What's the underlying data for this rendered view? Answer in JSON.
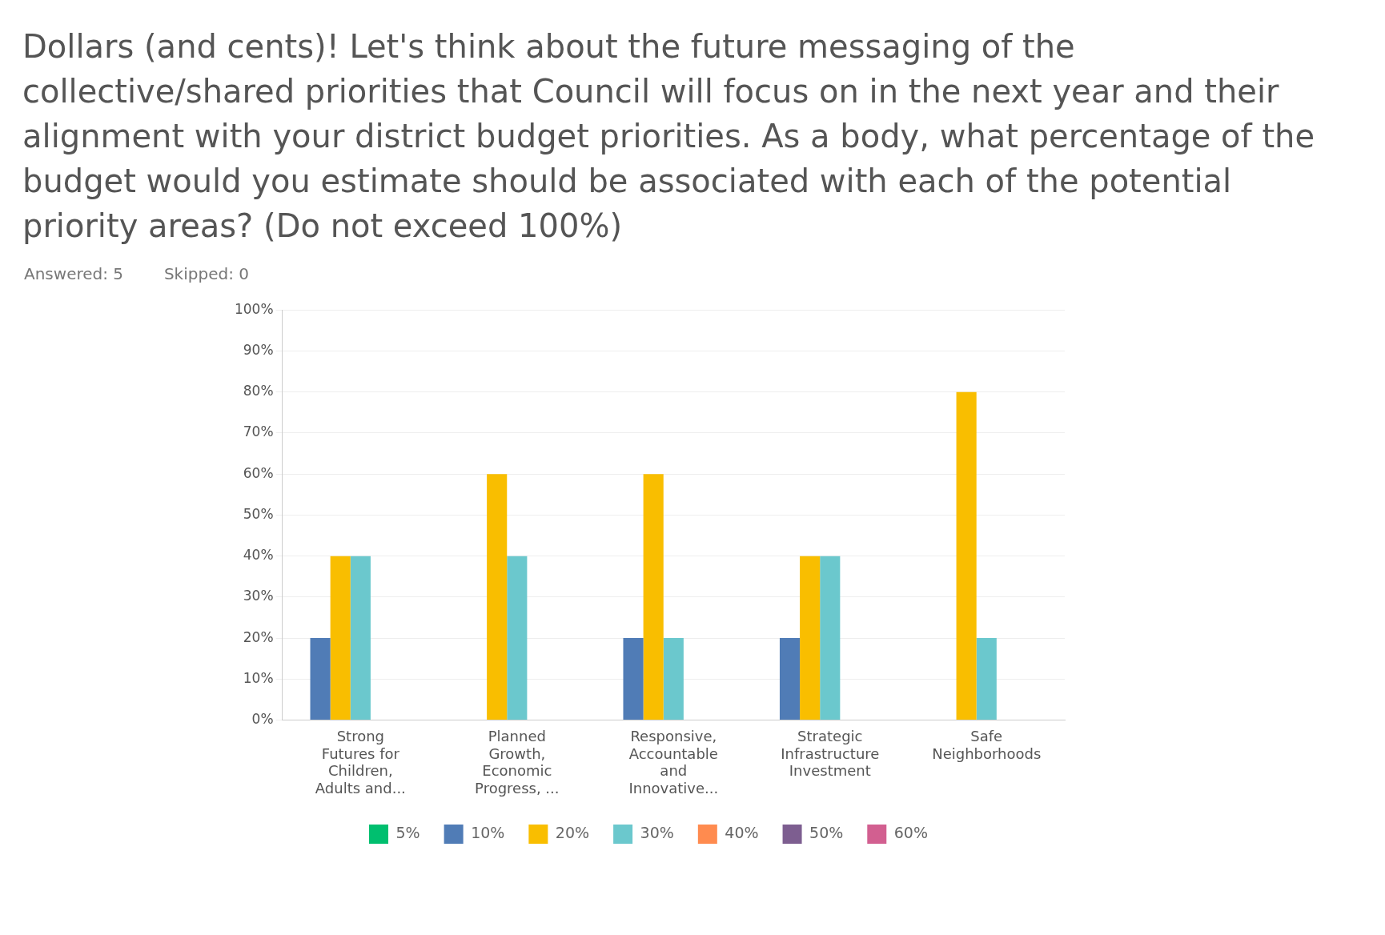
{
  "chart_data": {
    "type": "bar",
    "title": "Dollars (and cents)! Let's think about the future messaging of the collective/shared priorities that Council will focus on in the next year and their alignment with your district budget priorities. As a body, what percentage of the budget would you estimate should be associated with each of the potential priority areas? (Do not exceed 100%)",
    "subtitle": "Answered: 5    Skipped: 0",
    "categories": [
      "Strong Futures for Children, Adults and...",
      "Planned Growth, Economic Progress, ...",
      "Responsive, Accountable and Innovative...",
      "Strategic Infrastructure Investment",
      "Safe Neighborhoods"
    ],
    "series": [
      {
        "name": "5%",
        "color": "#00bf6f",
        "values": [
          0,
          0,
          0,
          0,
          0
        ]
      },
      {
        "name": "10%",
        "color": "#507cb6",
        "values": [
          20,
          0,
          20,
          20,
          0
        ]
      },
      {
        "name": "20%",
        "color": "#f9be00",
        "values": [
          40,
          60,
          60,
          40,
          80
        ]
      },
      {
        "name": "30%",
        "color": "#6bc8cd",
        "values": [
          40,
          40,
          20,
          40,
          20
        ]
      },
      {
        "name": "40%",
        "color": "#ff8b4f",
        "values": [
          0,
          0,
          0,
          0,
          0
        ]
      },
      {
        "name": "50%",
        "color": "#7d5e90",
        "values": [
          0,
          0,
          0,
          0,
          0
        ]
      },
      {
        "name": "60%",
        "color": "#d25f90",
        "values": [
          0,
          0,
          0,
          0,
          0
        ]
      }
    ],
    "ylim": [
      0,
      100
    ],
    "yticks": [
      {
        "value": 0,
        "label": "0%"
      },
      {
        "value": 10,
        "label": "10%"
      },
      {
        "value": 20,
        "label": "20%"
      },
      {
        "value": 30,
        "label": "30%"
      },
      {
        "value": 40,
        "label": "40%"
      },
      {
        "value": 50,
        "label": "50%"
      },
      {
        "value": 60,
        "label": "60%"
      },
      {
        "value": 70,
        "label": "70%"
      },
      {
        "value": 80,
        "label": "80%"
      },
      {
        "value": 90,
        "label": "90%"
      },
      {
        "value": 100,
        "label": "100%"
      }
    ],
    "grid": "y",
    "legend": "bottom"
  }
}
